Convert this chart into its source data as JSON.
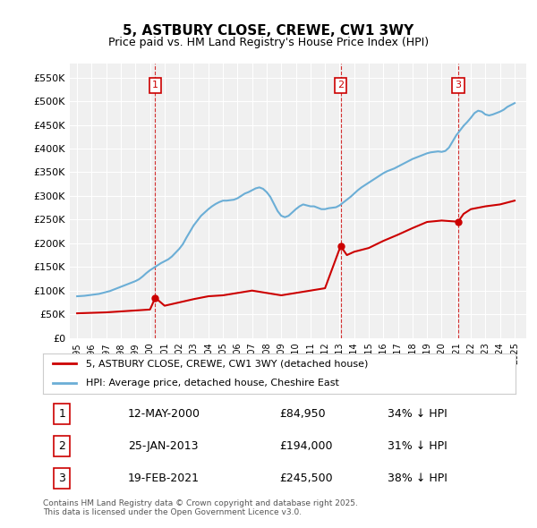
{
  "title": "5, ASTBURY CLOSE, CREWE, CW1 3WY",
  "subtitle": "Price paid vs. HM Land Registry's House Price Index (HPI)",
  "hpi_color": "#6baed6",
  "price_color": "#cc0000",
  "vline_color": "#cc0000",
  "background_color": "#ffffff",
  "plot_bg_color": "#f0f0f0",
  "grid_color": "#ffffff",
  "ylim": [
    0,
    580000
  ],
  "yticks": [
    0,
    50000,
    100000,
    150000,
    200000,
    250000,
    300000,
    350000,
    400000,
    450000,
    500000,
    550000
  ],
  "ytick_labels": [
    "£0",
    "£50K",
    "£100K",
    "£150K",
    "£200K",
    "£250K",
    "£300K",
    "£350K",
    "£400K",
    "£450K",
    "£500K",
    "£550K"
  ],
  "xlim_start": 1994.5,
  "xlim_end": 2025.8,
  "transactions": [
    {
      "year": 2000.36,
      "price": 84950,
      "label": "1"
    },
    {
      "year": 2013.07,
      "price": 194000,
      "label": "2"
    },
    {
      "year": 2021.13,
      "price": 245500,
      "label": "3"
    }
  ],
  "legend_entries": [
    {
      "label": "5, ASTBURY CLOSE, CREWE, CW1 3WY (detached house)",
      "color": "#cc0000"
    },
    {
      "label": "HPI: Average price, detached house, Cheshire East",
      "color": "#6baed6"
    }
  ],
  "table_rows": [
    {
      "num": "1",
      "date": "12-MAY-2000",
      "price": "£84,950",
      "change": "34% ↓ HPI"
    },
    {
      "num": "2",
      "date": "25-JAN-2013",
      "price": "£194,000",
      "change": "31% ↓ HPI"
    },
    {
      "num": "3",
      "date": "19-FEB-2021",
      "price": "£245,500",
      "change": "38% ↓ HPI"
    }
  ],
  "footnote": "Contains HM Land Registry data © Crown copyright and database right 2025.\nThis data is licensed under the Open Government Licence v3.0.",
  "hpi_data": {
    "years": [
      1995.0,
      1995.25,
      1995.5,
      1995.75,
      1996.0,
      1996.25,
      1996.5,
      1996.75,
      1997.0,
      1997.25,
      1997.5,
      1997.75,
      1998.0,
      1998.25,
      1998.5,
      1998.75,
      1999.0,
      1999.25,
      1999.5,
      1999.75,
      2000.0,
      2000.25,
      2000.5,
      2000.75,
      2001.0,
      2001.25,
      2001.5,
      2001.75,
      2002.0,
      2002.25,
      2002.5,
      2002.75,
      2003.0,
      2003.25,
      2003.5,
      2003.75,
      2004.0,
      2004.25,
      2004.5,
      2004.75,
      2005.0,
      2005.25,
      2005.5,
      2005.75,
      2006.0,
      2006.25,
      2006.5,
      2006.75,
      2007.0,
      2007.25,
      2007.5,
      2007.75,
      2008.0,
      2008.25,
      2008.5,
      2008.75,
      2009.0,
      2009.25,
      2009.5,
      2009.75,
      2010.0,
      2010.25,
      2010.5,
      2010.75,
      2011.0,
      2011.25,
      2011.5,
      2011.75,
      2012.0,
      2012.25,
      2012.5,
      2012.75,
      2013.0,
      2013.25,
      2013.5,
      2013.75,
      2014.0,
      2014.25,
      2014.5,
      2014.75,
      2015.0,
      2015.25,
      2015.5,
      2015.75,
      2016.0,
      2016.25,
      2016.5,
      2016.75,
      2017.0,
      2017.25,
      2017.5,
      2017.75,
      2018.0,
      2018.25,
      2018.5,
      2018.75,
      2019.0,
      2019.25,
      2019.5,
      2019.75,
      2020.0,
      2020.25,
      2020.5,
      2020.75,
      2021.0,
      2021.25,
      2021.5,
      2021.75,
      2022.0,
      2022.25,
      2022.5,
      2022.75,
      2023.0,
      2023.25,
      2023.5,
      2023.75,
      2024.0,
      2024.25,
      2024.5,
      2024.75,
      2025.0
    ],
    "values": [
      88000,
      88500,
      89000,
      90000,
      91000,
      92000,
      93000,
      95000,
      97000,
      99000,
      102000,
      105000,
      108000,
      111000,
      114000,
      117000,
      120000,
      124000,
      130000,
      137000,
      143000,
      148000,
      153000,
      158000,
      162000,
      166000,
      172000,
      180000,
      188000,
      198000,
      212000,
      225000,
      238000,
      248000,
      258000,
      265000,
      272000,
      278000,
      283000,
      287000,
      290000,
      290000,
      291000,
      292000,
      295000,
      300000,
      305000,
      308000,
      312000,
      316000,
      318000,
      315000,
      308000,
      298000,
      283000,
      268000,
      258000,
      255000,
      258000,
      265000,
      272000,
      278000,
      282000,
      280000,
      278000,
      278000,
      275000,
      272000,
      272000,
      274000,
      275000,
      276000,
      280000,
      286000,
      292000,
      298000,
      305000,
      312000,
      318000,
      323000,
      328000,
      333000,
      338000,
      343000,
      348000,
      352000,
      355000,
      358000,
      362000,
      366000,
      370000,
      374000,
      378000,
      381000,
      384000,
      387000,
      390000,
      392000,
      393000,
      394000,
      393000,
      395000,
      402000,
      415000,
      428000,
      438000,
      448000,
      456000,
      465000,
      475000,
      480000,
      478000,
      472000,
      470000,
      472000,
      475000,
      478000,
      482000,
      488000,
      492000,
      496000
    ]
  },
  "price_line_data": {
    "years": [
      1995.0,
      1996.0,
      1997.0,
      1998.0,
      1999.0,
      2000.0,
      2000.36,
      2001.0,
      2002.0,
      2003.0,
      2004.0,
      2005.0,
      2006.0,
      2007.0,
      2008.0,
      2009.0,
      2010.0,
      2011.0,
      2012.0,
      2013.07,
      2013.5,
      2014.0,
      2015.0,
      2016.0,
      2017.0,
      2018.0,
      2019.0,
      2020.0,
      2021.13,
      2021.5,
      2022.0,
      2023.0,
      2024.0,
      2025.0
    ],
    "values": [
      52000,
      53000,
      54000,
      56000,
      58000,
      60000,
      84950,
      68000,
      75000,
      82000,
      88000,
      90000,
      95000,
      100000,
      95000,
      90000,
      95000,
      100000,
      105000,
      194000,
      175000,
      182000,
      190000,
      205000,
      218000,
      232000,
      245000,
      248000,
      245500,
      262000,
      272000,
      278000,
      282000,
      290000
    ]
  }
}
